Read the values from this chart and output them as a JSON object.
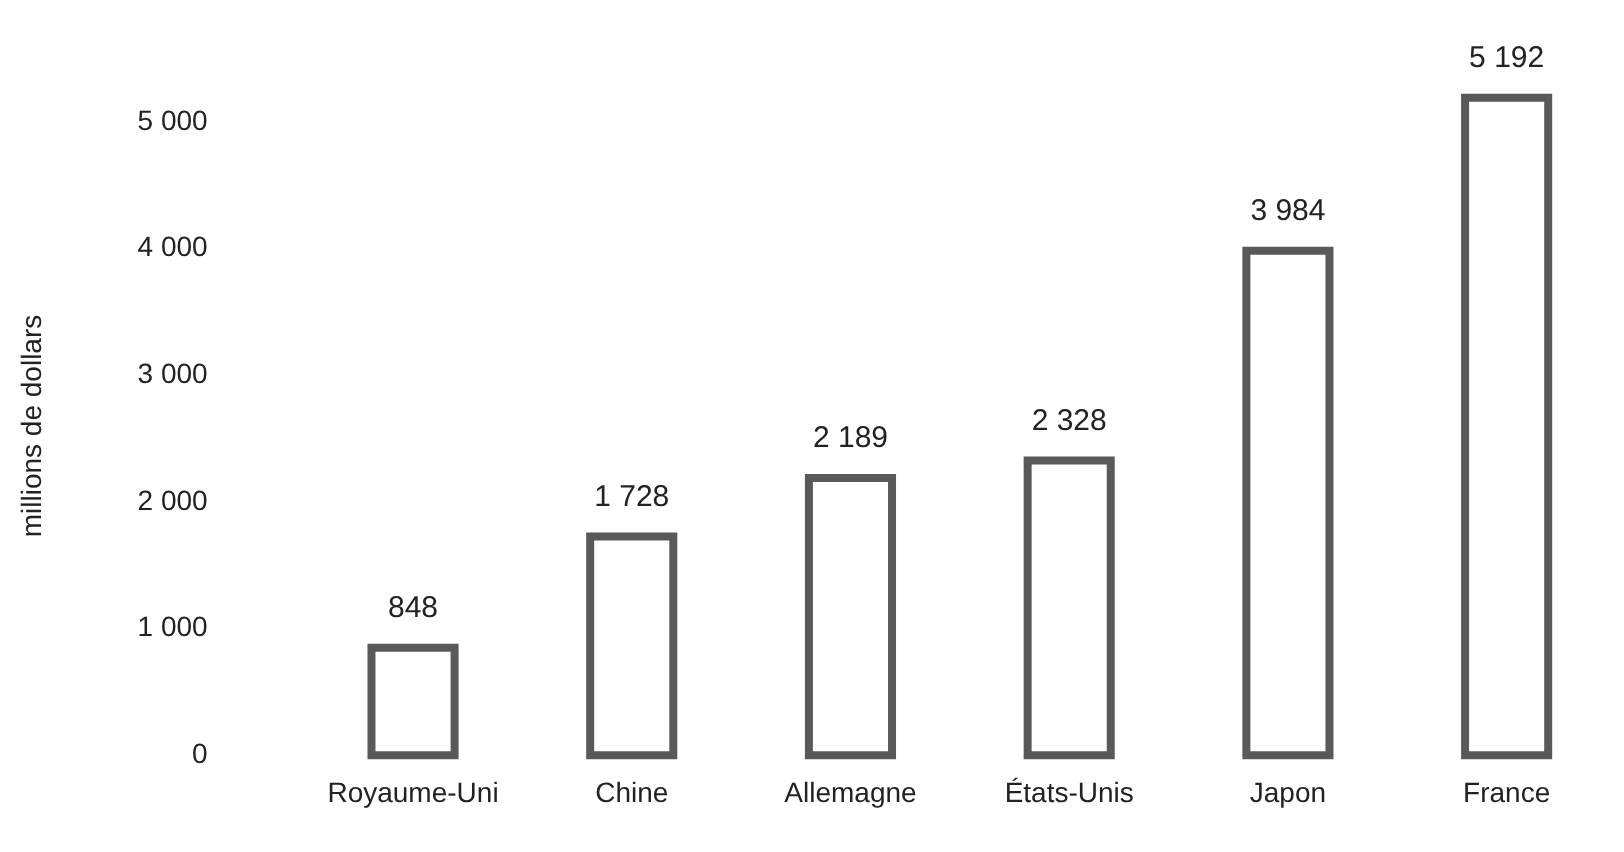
{
  "chart_data": {
    "type": "bar",
    "ylabel": "millions de dollars",
    "categories": [
      "Royaume-Uni",
      "Chine",
      "Allemagne",
      "États-Unis",
      "Japon",
      "France"
    ],
    "values": [
      848,
      1728,
      2189,
      2328,
      3984,
      5192
    ],
    "value_labels": [
      "848",
      "1 728",
      "2 189",
      "2 328",
      "3 984",
      "5 192"
    ],
    "color": "#595959",
    "ylim": [
      0,
      5200
    ],
    "yticks": [
      {
        "value": 0,
        "label": "0"
      },
      {
        "value": 1000,
        "label": "1 000"
      },
      {
        "value": 2000,
        "label": "2 000"
      },
      {
        "value": 3000,
        "label": "3 000"
      },
      {
        "value": 4000,
        "label": "4 000"
      },
      {
        "value": 5000,
        "label": "5 000"
      }
    ],
    "grid": false,
    "legend": false
  }
}
